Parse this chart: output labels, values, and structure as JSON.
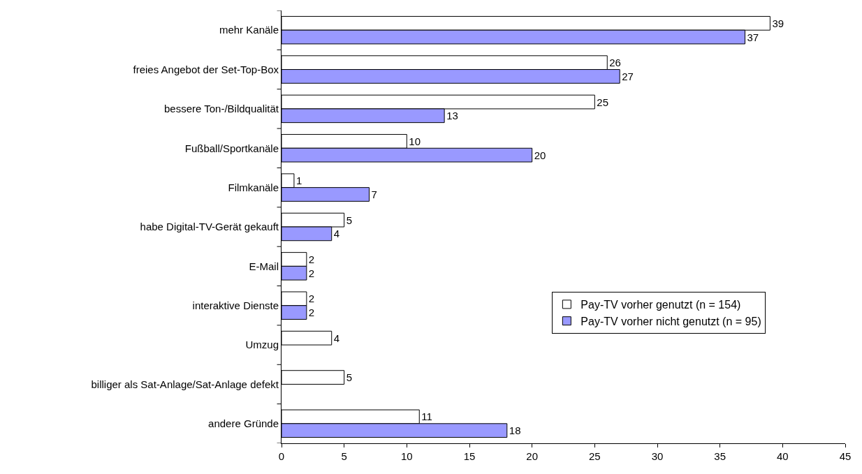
{
  "chart_data": {
    "type": "bar",
    "orientation": "horizontal",
    "categories": [
      "mehr Kanäle",
      "freies Angebot der Set-Top-Box",
      "bessere Ton-/Bildqualität",
      "Fußball/Sportkanäle",
      "Filmkanäle",
      "habe Digital-TV-Gerät gekauft",
      "E-Mail",
      "interaktive Dienste",
      "Umzug",
      "billiger als Sat-Anlage/Sat-Anlage defekt",
      "andere Gründe"
    ],
    "series": [
      {
        "name": "Pay-TV vorher genutzt (n = 154)",
        "color": "#ffffff",
        "values": [
          39,
          26,
          25,
          10,
          1,
          5,
          2,
          2,
          4,
          5,
          11
        ]
      },
      {
        "name": "Pay-TV vorher nicht genutzt (n = 95)",
        "color": "#9999ff",
        "values": [
          37,
          27,
          13,
          20,
          7,
          4,
          2,
          2,
          null,
          null,
          18
        ]
      }
    ],
    "xlim": [
      0,
      45
    ],
    "xticks": [
      0,
      5,
      10,
      15,
      20,
      25,
      30,
      35,
      40,
      45
    ],
    "data_labels": true,
    "legend": "bottom right"
  }
}
